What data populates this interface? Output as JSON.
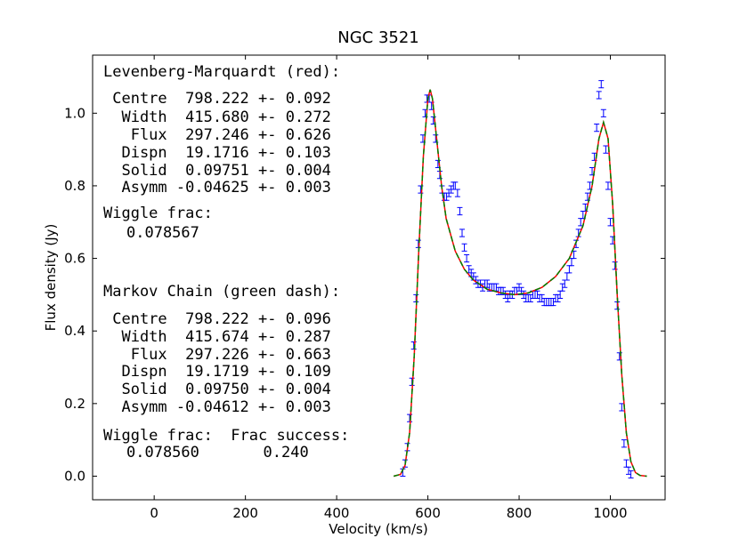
{
  "chart_data": {
    "type": "scatter",
    "title": "NGC 3521",
    "xlabel": "Velocity (km/s)",
    "ylabel": "Flux density (Jy)",
    "xlim": [
      -135,
      1120
    ],
    "ylim": [
      -0.065,
      1.16
    ],
    "xticks": [
      0,
      200,
      400,
      600,
      800,
      1000
    ],
    "yticks": [
      {
        "value": 0,
        "label": "0.0"
      },
      0.2,
      0.4,
      0.6,
      0.8,
      {
        "value": 1,
        "label": "1.0"
      }
    ],
    "annotations": [
      "Levenberg-Marquardt (red):",
      " Centre  798.222 +- 0.092",
      "  Width  415.680 +- 0.272",
      "   Flux  297.246 +- 0.626",
      "  Dispn  19.1716 +- 0.103",
      "  Solid  0.09751 +- 0.004",
      "  Asymm -0.04625 +- 0.003",
      "Wiggle frac:",
      "0.078567",
      "Markov Chain (green dash):",
      " Centre  798.222 +- 0.096",
      "  Width  415.674 +- 0.287",
      "   Flux  297.226 +- 0.663",
      "  Dispn  19.1719 +- 0.109",
      "  Solid  0.09750 +- 0.004",
      "  Asymm -0.04612 +- 0.003",
      "Wiggle frac:  Frac success:",
      "0.078560       0.240"
    ],
    "series": [
      {
        "style": "errorbar",
        "color": "#0000ff",
        "x": [
          545,
          550,
          555,
          560,
          565,
          569,
          574,
          579,
          584,
          589,
          594,
          598,
          603,
          608,
          612,
          617,
          622,
          626,
          631,
          636,
          641,
          646,
          651,
          656,
          660,
          665,
          670,
          675,
          680,
          685,
          690,
          695,
          700,
          705,
          710,
          715,
          720,
          725,
          730,
          735,
          740,
          745,
          750,
          755,
          760,
          765,
          770,
          775,
          780,
          785,
          790,
          795,
          800,
          805,
          810,
          815,
          820,
          825,
          830,
          835,
          840,
          845,
          850,
          855,
          860,
          865,
          870,
          875,
          880,
          885,
          890,
          895,
          900,
          905,
          910,
          915,
          920,
          925,
          930,
          935,
          940,
          945,
          950,
          955,
          960,
          965,
          970,
          975,
          980,
          985,
          990,
          995,
          1000,
          1005,
          1010,
          1015,
          1020,
          1025,
          1030,
          1035,
          1040,
          1045
        ],
        "values": [
          0.01,
          0.035,
          0.08,
          0.16,
          0.26,
          0.36,
          0.49,
          0.64,
          0.79,
          0.93,
          1.0,
          1.04,
          1.04,
          1.02,
          0.98,
          0.93,
          0.86,
          0.83,
          0.79,
          0.77,
          0.77,
          0.78,
          0.79,
          0.8,
          0.8,
          0.78,
          0.73,
          0.67,
          0.63,
          0.6,
          0.57,
          0.56,
          0.55,
          0.54,
          0.53,
          0.53,
          0.52,
          0.53,
          0.53,
          0.52,
          0.52,
          0.52,
          0.52,
          0.51,
          0.51,
          0.51,
          0.5,
          0.49,
          0.5,
          0.5,
          0.51,
          0.51,
          0.52,
          0.51,
          0.5,
          0.49,
          0.49,
          0.49,
          0.5,
          0.5,
          0.5,
          0.49,
          0.49,
          0.48,
          0.48,
          0.48,
          0.48,
          0.48,
          0.49,
          0.49,
          0.5,
          0.52,
          0.53,
          0.55,
          0.57,
          0.59,
          0.61,
          0.64,
          0.67,
          0.7,
          0.72,
          0.74,
          0.77,
          0.8,
          0.84,
          0.88,
          0.96,
          1.05,
          1.08,
          1.0,
          0.9,
          0.8,
          0.7,
          0.65,
          0.58,
          0.47,
          0.33,
          0.19,
          0.09,
          0.035,
          0.015,
          0.005
        ],
        "errors": [
          0.01,
          0.01,
          0.01,
          0.01,
          0.01,
          0.01,
          0.01,
          0.01,
          0.01,
          0.01,
          0.01,
          0.01,
          0.01,
          0.01,
          0.01,
          0.01,
          0.01,
          0.01,
          0.01,
          0.01,
          0.01,
          0.01,
          0.01,
          0.01,
          0.01,
          0.01,
          0.01,
          0.01,
          0.01,
          0.01,
          0.01,
          0.01,
          0.01,
          0.01,
          0.01,
          0.01,
          0.01,
          0.01,
          0.01,
          0.01,
          0.01,
          0.01,
          0.01,
          0.01,
          0.01,
          0.01,
          0.01,
          0.01,
          0.01,
          0.01,
          0.01,
          0.01,
          0.01,
          0.01,
          0.01,
          0.01,
          0.01,
          0.01,
          0.01,
          0.01,
          0.01,
          0.01,
          0.01,
          0.01,
          0.01,
          0.01,
          0.01,
          0.01,
          0.01,
          0.01,
          0.01,
          0.01,
          0.01,
          0.01,
          0.01,
          0.01,
          0.01,
          0.01,
          0.01,
          0.01,
          0.01,
          0.01,
          0.01,
          0.01,
          0.01,
          0.01,
          0.01,
          0.01,
          0.01,
          0.01,
          0.01,
          0.01,
          0.01,
          0.01,
          0.01,
          0.01,
          0.01,
          0.01,
          0.01,
          0.01,
          0.01,
          0.01
        ]
      },
      {
        "style": "solid",
        "color": "#ff0000",
        "x": [
          525,
          540,
          550,
          560,
          570,
          580,
          590,
          600,
          605,
          610,
          620,
          630,
          640,
          660,
          680,
          700,
          730,
          760,
          790,
          820,
          850,
          880,
          910,
          940,
          960,
          975,
          985,
          995,
          1005,
          1015,
          1025,
          1035,
          1045,
          1055,
          1065,
          1080
        ],
        "values": [
          0,
          0.005,
          0.03,
          0.12,
          0.33,
          0.62,
          0.88,
          1.04,
          1.065,
          1.04,
          0.92,
          0.8,
          0.71,
          0.62,
          0.57,
          0.54,
          0.515,
          0.505,
          0.5,
          0.505,
          0.52,
          0.55,
          0.6,
          0.69,
          0.8,
          0.93,
          0.975,
          0.93,
          0.75,
          0.5,
          0.28,
          0.12,
          0.04,
          0.01,
          0.002,
          0
        ]
      },
      {
        "style": "dashed",
        "color": "#008000",
        "x": [
          525,
          540,
          550,
          560,
          570,
          580,
          590,
          600,
          605,
          610,
          620,
          630,
          640,
          660,
          680,
          700,
          730,
          760,
          790,
          820,
          850,
          880,
          910,
          940,
          960,
          975,
          985,
          995,
          1005,
          1015,
          1025,
          1035,
          1045,
          1055,
          1065,
          1080
        ],
        "values": [
          0,
          0.005,
          0.03,
          0.12,
          0.33,
          0.62,
          0.88,
          1.04,
          1.065,
          1.04,
          0.92,
          0.8,
          0.71,
          0.62,
          0.57,
          0.54,
          0.515,
          0.505,
          0.5,
          0.505,
          0.52,
          0.55,
          0.6,
          0.69,
          0.8,
          0.93,
          0.975,
          0.93,
          0.75,
          0.5,
          0.28,
          0.12,
          0.04,
          0.01,
          0.002,
          0
        ]
      }
    ]
  }
}
